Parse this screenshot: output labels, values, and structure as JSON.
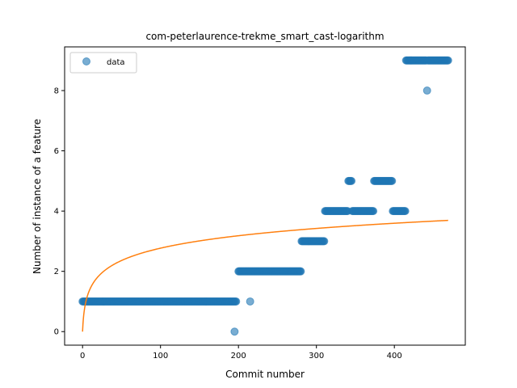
{
  "chart_data": {
    "type": "scatter",
    "title": "com-peterlaurence-trekme_smart_cast-logarithm",
    "xlabel": "Commit number",
    "ylabel": "Number of instance of a feature",
    "xlim": [
      -23,
      491
    ],
    "ylim": [
      -0.45,
      9.45
    ],
    "xticks": [
      0,
      100,
      200,
      300,
      400
    ],
    "yticks": [
      0,
      2,
      4,
      6,
      8
    ],
    "grid": false,
    "legend": {
      "position": "top-left",
      "entries": [
        "data"
      ]
    },
    "colors": {
      "data": "#1f77b4",
      "fit": "#ff7f0e"
    },
    "series": [
      {
        "name": "data",
        "kind": "scatter",
        "segments": [
          {
            "x_start": 0,
            "x_end": 197,
            "y": 1
          },
          {
            "x_start": 200,
            "x_end": 280,
            "y": 2
          },
          {
            "x_start": 281,
            "x_end": 310,
            "y": 3
          },
          {
            "x_start": 311,
            "x_end": 340,
            "y": 4
          },
          {
            "x_start": 341,
            "x_end": 345,
            "y": 5
          },
          {
            "x_start": 346,
            "x_end": 373,
            "y": 4
          },
          {
            "x_start": 374,
            "x_end": 397,
            "y": 5
          },
          {
            "x_start": 398,
            "x_end": 414,
            "y": 4
          },
          {
            "x_start": 415,
            "x_end": 441,
            "y": 9
          },
          {
            "x_start": 443,
            "x_end": 469,
            "y": 9
          }
        ],
        "points": [
          {
            "x": 195,
            "y": 0
          },
          {
            "x": 215,
            "y": 1
          },
          {
            "x": 442,
            "y": 8
          }
        ]
      },
      {
        "kind": "line",
        "function": "y = 0.6 * ln(x + 1)",
        "x_range": [
          0,
          469
        ]
      }
    ]
  }
}
